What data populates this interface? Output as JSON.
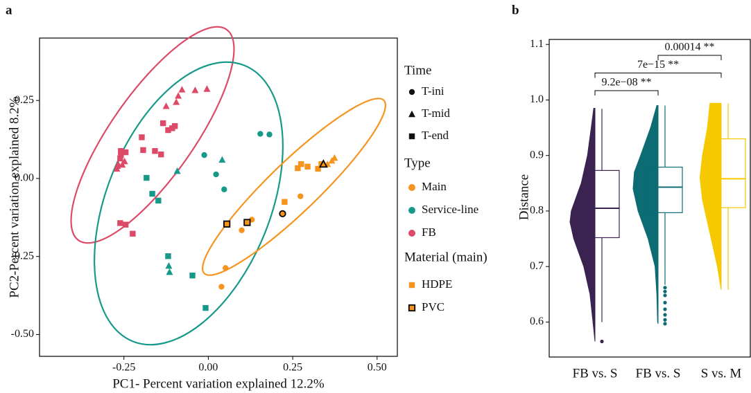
{
  "chart_data": [
    {
      "type": "scatter",
      "panel": "a",
      "x_label": "PC1- Percent variation explained 12.2%",
      "y_label": "PC2-Percent variation explained 8.2%",
      "xlim": [
        -0.5,
        0.56
      ],
      "ylim": [
        -0.57,
        0.45
      ],
      "xticks": [
        -0.25,
        {
          "value": 0,
          "label": "0.00"
        },
        0.25,
        {
          "value": 0.5,
          "label": "0.50"
        }
      ],
      "yticks": [
        {
          "value": -0.5,
          "label": "-0.50"
        },
        -0.25,
        {
          "value": 0,
          "label": "0.00"
        },
        0.25
      ],
      "time_legend": {
        "title": "Time",
        "items": [
          {
            "label": "T-ini",
            "marker": "circle"
          },
          {
            "label": "T-mid",
            "marker": "triangle"
          },
          {
            "label": "T-end",
            "marker": "square"
          }
        ]
      },
      "type_legend_title": "Type",
      "material_legend": {
        "title": "Material (main)",
        "items": [
          {
            "label": "HDPE",
            "outline": false
          },
          {
            "label": "PVC",
            "outline": true
          }
        ]
      },
      "series": [
        {
          "name": "Main",
          "color": "#F7941D",
          "x": [
            0.039,
            0.051,
            0.099,
            0.129,
            0.273,
            0.22,
            0.226,
            0.265,
            0.275,
            0.294,
            0.325,
            0.335,
            0.055,
            0.115,
            0.353,
            0.366,
            0.374,
            0.341
          ],
          "values": [
            -0.347,
            -0.287,
            -0.166,
            -0.132,
            -0.057,
            -0.113,
            -0.075,
            0.033,
            0.046,
            0.038,
            0.031,
            0.046,
            -0.146,
            -0.141,
            0.046,
            0.057,
            0.066,
            0.046
          ],
          "markers": [
            "circle",
            "circle",
            "circle",
            "circle",
            "circle",
            "circle",
            "square",
            "square",
            "square",
            "square",
            "square",
            "square",
            "square",
            "square",
            "triangle",
            "triangle",
            "triangle",
            "triangle"
          ],
          "materials": [
            "HDPE",
            "HDPE",
            "HDPE",
            "HDPE",
            "HDPE",
            "PVC",
            "HDPE",
            "HDPE",
            "HDPE",
            "HDPE",
            "HDPE",
            "HDPE",
            "PVC",
            "PVC",
            "HDPE",
            "HDPE",
            "HDPE",
            "PVC"
          ]
        },
        {
          "name": "Service-line",
          "color": "#17998A",
          "x": [
            -0.012,
            0.023,
            0.047,
            0.154,
            0.181,
            -0.092,
            0.041,
            -0.117,
            -0.115,
            -0.183,
            -0.166,
            -0.148,
            -0.119,
            -0.047,
            -0.008
          ],
          "values": [
            0.075,
            0.013,
            -0.035,
            0.143,
            0.141,
            0.024,
            0.06,
            -0.28,
            -0.3,
            0.002,
            -0.049,
            -0.071,
            -0.249,
            -0.311,
            -0.415
          ],
          "markers": [
            "circle",
            "circle",
            "circle",
            "circle",
            "circle",
            "triangle",
            "triangle",
            "triangle",
            "triangle",
            "square",
            "square",
            "square",
            "square",
            "square",
            "square"
          ]
        },
        {
          "name": "FB",
          "color": "#DD4A68",
          "x": [
            -0.125,
            -0.095,
            -0.089,
            -0.078,
            -0.039,
            -0.004,
            -0.271,
            -0.267,
            -0.255,
            -0.248,
            -0.269,
            -0.259,
            -0.245,
            -0.259,
            -0.261,
            -0.193,
            -0.158,
            -0.14,
            -0.197,
            -0.134,
            -0.119,
            -0.107,
            -0.099,
            -0.261,
            -0.245,
            -0.224
          ],
          "values": [
            0.232,
            0.245,
            0.265,
            0.285,
            0.283,
            0.287,
            0.031,
            0.046,
            0.044,
            0.055,
            0.04,
            0.088,
            0.084,
            0.075,
            0.064,
            0.091,
            0.088,
            0.077,
            0.132,
            0.177,
            0.155,
            0.161,
            0.168,
            -0.143,
            -0.148,
            -0.177
          ],
          "markers": [
            "triangle",
            "triangle",
            "triangle",
            "triangle",
            "triangle",
            "triangle",
            "triangle",
            "triangle",
            "triangle",
            "triangle",
            "triangle",
            "square",
            "square",
            "square",
            "square",
            "square",
            "square",
            "square",
            "square",
            "square",
            "square",
            "square",
            "square",
            "square",
            "square",
            "square"
          ]
        }
      ]
    },
    {
      "type": "violin-box",
      "panel": "b",
      "y_label": "Distance",
      "ylim": [
        0.537,
        1.109
      ],
      "yticks": [
        0.6,
        0.7,
        0.8,
        0.9,
        {
          "value": 1,
          "label": "1.0"
        },
        1.1
      ],
      "categories": [
        "FB vs. S",
        "FB vs. S",
        "S vs. M"
      ],
      "groups": [
        {
          "color": "#3A2350",
          "whisker_low": 0.6,
          "q1": 0.752,
          "median": 0.805,
          "q3": 0.873,
          "whisker_high": 0.984,
          "outliers": [
            0.565
          ],
          "density_y": [
            0.565,
            0.6,
            0.65,
            0.7,
            0.75,
            0.78,
            0.8,
            0.85,
            0.9,
            0.95,
            0.985
          ],
          "density": [
            0,
            0.08,
            0.2,
            0.45,
            0.85,
            1,
            0.95,
            0.55,
            0.3,
            0.15,
            0.05
          ]
        },
        {
          "color": "#0C6B73",
          "whisker_low": 0.667,
          "q1": 0.797,
          "median": 0.843,
          "q3": 0.879,
          "whisker_high": 0.99,
          "outliers": [
            0.662,
            0.655,
            0.648,
            0.635,
            0.623,
            0.613,
            0.604,
            0.597
          ],
          "density_y": [
            0.597,
            0.6,
            0.65,
            0.7,
            0.75,
            0.8,
            0.84,
            0.87,
            0.9,
            0.95,
            0.99
          ],
          "density": [
            0,
            0.02,
            0.05,
            0.12,
            0.4,
            0.8,
            1,
            0.95,
            0.7,
            0.3,
            0.05
          ]
        },
        {
          "color": "#F5C800",
          "whisker_low": 0.658,
          "q1": 0.806,
          "median": 0.858,
          "q3": 0.93,
          "whisker_high": 0.994,
          "outliers": [],
          "density_y": [
            0.658,
            0.7,
            0.74,
            0.78,
            0.82,
            0.86,
            0.9,
            0.95,
            0.994
          ],
          "density": [
            0,
            0.15,
            0.35,
            0.55,
            0.75,
            0.85,
            0.75,
            0.55,
            0.45
          ]
        }
      ],
      "comparisons": [
        {
          "pair": [
            0,
            1
          ],
          "label": "9.2e−08 **"
        },
        {
          "pair": [
            0,
            2
          ],
          "label": "7e−15 **"
        },
        {
          "pair": [
            1,
            2
          ],
          "label": "0.00014 **"
        }
      ]
    }
  ]
}
